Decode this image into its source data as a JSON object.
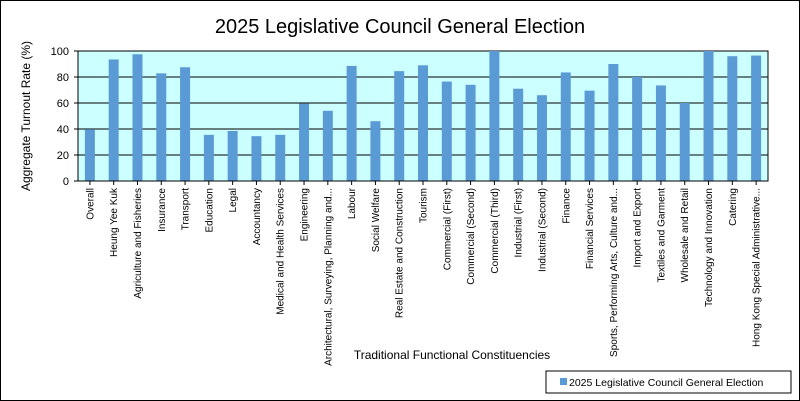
{
  "chart_data": {
    "type": "bar",
    "title": "2025 Legislative Council General Election",
    "xlabel": "Traditional  Functional  Constituencies",
    "ylabel": "Aggregate  Turnout  Rate  (%)",
    "ylim": [
      0,
      100
    ],
    "yticks": [
      "0",
      "20",
      "40",
      "60",
      "80",
      "100"
    ],
    "grid": true,
    "plot_background": "#ccffff",
    "bar_color": "#5b9bd5",
    "legend_position": "bottom-right",
    "categories": [
      "Overall",
      "Heung Yee Kuk",
      "Agriculture and Fisheries",
      "Insurance",
      "Transport",
      "Education",
      "Legal",
      "Accountancy",
      "Medical and Health Services",
      "Engineering",
      "Architectural, Surveying, Planning and...",
      "Labour",
      "Social Welfare",
      "Real Estate and Construction",
      "Tourism",
      "Commercial (First)",
      "Commercial (Second)",
      "Commercial (Third)",
      "Industrial (First)",
      "Industrial (Second)",
      "Finance",
      "Financial Services",
      "Sports, Performing Arts, Culture and...",
      "Import and Export",
      "Textiles and Garment",
      "Wholesale and Retail",
      "Technology and Innovation",
      "Catering",
      "Hong Kong Special Administrative..."
    ],
    "series": [
      {
        "name": "2025 Legislative Council General Election",
        "values": [
          39.8,
          93.5,
          97.5,
          82.8,
          87.5,
          35.5,
          38.5,
          34.5,
          35.5,
          59.5,
          54.0,
          88.5,
          46.0,
          84.5,
          89.0,
          76.5,
          74.0,
          100.0,
          71.0,
          66.0,
          83.5,
          69.5,
          90.0,
          80.0,
          73.5,
          60.0,
          100.0,
          96.0,
          96.5
        ]
      }
    ]
  }
}
